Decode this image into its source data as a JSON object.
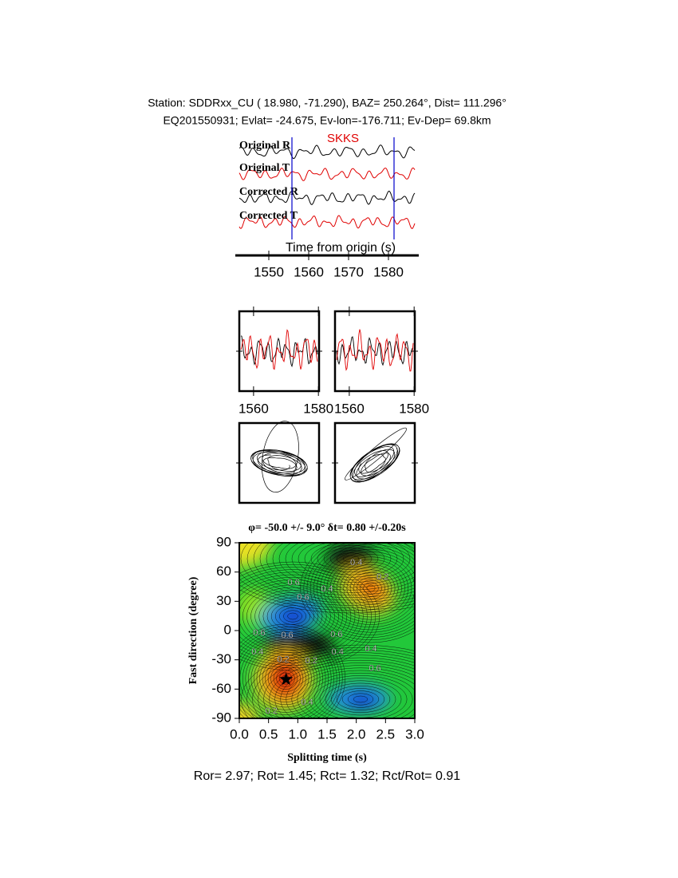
{
  "header": {
    "station": "Station: SDDRxx_CU (  18.980,  -71.290), BAZ=  250.264°, Dist=  111.296°",
    "event": "EQ201550931; Evlat= -24.675, Ev-lon=-176.711; Ev-Dep= 69.8km"
  },
  "chart_data": [
    {
      "type": "waveform",
      "traces": [
        {
          "name": "Original R",
          "color": "#000000"
        },
        {
          "name": "Original T",
          "color": "#e00000"
        },
        {
          "name": "Corrected R",
          "color": "#000000"
        },
        {
          "name": "Corrected T",
          "color": "#e00000"
        }
      ],
      "phase": "SKKS",
      "window": [
        1555.8,
        1581.4
      ],
      "window_color": "#0000cc",
      "xlabel": "Time from origin (s)",
      "xlim": [
        1542.6,
        1586.6
      ],
      "xticks": [
        1550,
        1560,
        1570,
        1580
      ]
    },
    {
      "type": "waveform-pair",
      "panels": [
        {
          "xlim": [
            1555.6,
            1580.2
          ],
          "xticks": [
            1560,
            1580
          ]
        },
        {
          "xlim": [
            1555.6,
            1580.2
          ],
          "xticks": [
            1560,
            1580
          ]
        }
      ]
    },
    {
      "type": "particle-motion",
      "panels": 2
    },
    {
      "type": "contour",
      "title": "φ= -50.0 +/- 9.0° δt= 0.80 +/-0.20s",
      "xlabel": "Splitting time (s)",
      "ylabel": "Fast direction (degree)",
      "xlim": [
        0,
        3
      ],
      "ylim": [
        -90,
        90
      ],
      "xticks": [
        {
          "value": 0,
          "label": "0.0"
        },
        0.5,
        {
          "value": 1,
          "label": "1.0"
        },
        1.5,
        {
          "value": 2,
          "label": "2.0"
        },
        2.5,
        {
          "value": 3,
          "label": "3.0"
        }
      ],
      "yticks": [
        -90,
        -60,
        -30,
        0,
        30,
        60,
        90
      ],
      "best": {
        "x": 0.8,
        "y": -50
      },
      "contour_labels": [
        {
          "level": 0.4,
          "x": 2.0,
          "y": 69.5
        },
        {
          "level": 0.2,
          "x": 2.45,
          "y": 54.8
        },
        {
          "level": 0.6,
          "x": 0.93,
          "y": 49
        },
        {
          "level": 0.6,
          "x": 1.09,
          "y": 34
        },
        {
          "level": 0.4,
          "x": 1.5,
          "y": 42.5
        },
        {
          "level": 0.6,
          "x": 0.34,
          "y": -2.5
        },
        {
          "level": 0.6,
          "x": 0.82,
          "y": -5
        },
        {
          "level": 0.6,
          "x": 1.66,
          "y": -4
        },
        {
          "level": 0.4,
          "x": 0.31,
          "y": -22
        },
        {
          "level": 0.2,
          "x": 0.75,
          "y": -30
        },
        {
          "level": 0.2,
          "x": 1.23,
          "y": -31
        },
        {
          "level": 0.4,
          "x": 1.68,
          "y": -22
        },
        {
          "level": 0.4,
          "x": 2.25,
          "y": -19
        },
        {
          "level": 0.6,
          "x": 2.32,
          "y": -39
        },
        {
          "level": 0.2,
          "x": 0.55,
          "y": -82.6
        },
        {
          "level": 0.4,
          "x": 1.16,
          "y": -73.6
        }
      ]
    }
  ],
  "footer": "Ror= 2.97; Rot= 1.45; Rct= 1.32; Rct/Rot= 0.91"
}
